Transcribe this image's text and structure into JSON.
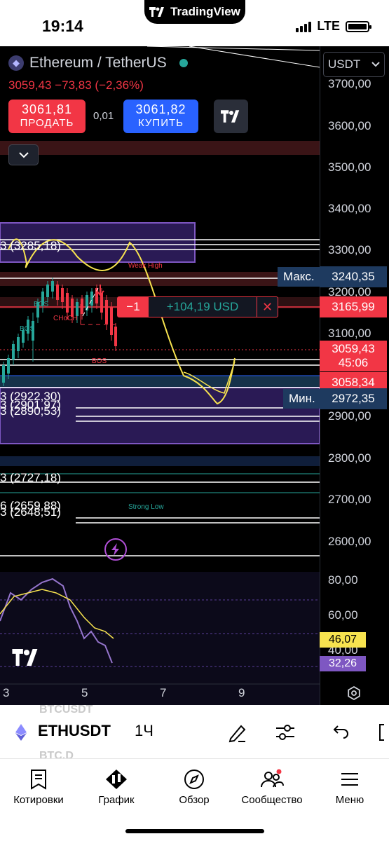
{
  "status": {
    "time": "19:14",
    "app": "TradingView",
    "network": "LTE"
  },
  "header": {
    "symbol_full": "Ethereum / TetherUS",
    "last": "3059,43",
    "change": "−73,83",
    "change_pct": "(−2,36%)",
    "sell_price": "3061,81",
    "sell_label": "ПРОДАТЬ",
    "spread": "0,01",
    "buy_price": "3061,82",
    "buy_label": "КУПИТЬ",
    "currency": "USDT"
  },
  "price_axis": [
    "3700,00",
    "3600,00",
    "3500,00",
    "3400,00",
    "3300,00",
    "3200,00",
    "3100,00",
    "2900,00",
    "2800,00",
    "2700,00",
    "2600,00"
  ],
  "tags": {
    "max_label": "Макс.",
    "max_value": "3240,35",
    "pos_price": "3165,99",
    "last_price": "3059,43",
    "countdown": "45:06",
    "red_price": "3058,34",
    "min_label": "Мин.",
    "min_value": "2972,35"
  },
  "position": {
    "qty": "−1",
    "pnl": "+104,19 USD"
  },
  "levels": {
    "l1": "3 (3285,18)",
    "l2": "3 (2922,30)",
    "l3": "3 (2901,97)",
    "l4": "3 (2890,53)",
    "l5": "3 (2727,18)",
    "l6": "6 (2659,88)",
    "l7": "3 (2648,51)"
  },
  "annotations": {
    "weak_high": "Weak High",
    "strong_low": "Strong Low",
    "bos": "BOS",
    "choch": "CHoCH"
  },
  "indicator_axis": [
    "80,00",
    "60,00",
    "40,00"
  ],
  "indicator_tags": {
    "yellow": "46,07",
    "purple": "32,26"
  },
  "time_axis": [
    "3",
    "5",
    "7",
    "9"
  ],
  "colors": {
    "sell": "#f23645",
    "buy": "#2962ff",
    "up": "#26a69a",
    "purple": "#7e57c2",
    "yellow": "#f7e34f"
  },
  "bottom": {
    "ghost_top": "BTCUSDT",
    "ghost_bottom": "BTC.D",
    "symbol": "ETHUSDT",
    "timeframe": "1Ч",
    "tools": [
      "pen-icon",
      "sliders-icon",
      "undo-icon"
    ]
  },
  "nav": [
    {
      "label": "Котировки",
      "icon": "quotes-icon"
    },
    {
      "label": "График",
      "icon": "chart-icon"
    },
    {
      "label": "Обзор",
      "icon": "compass-icon"
    },
    {
      "label": "Сообщество",
      "icon": "community-icon"
    },
    {
      "label": "Меню",
      "icon": "menu-icon"
    }
  ]
}
